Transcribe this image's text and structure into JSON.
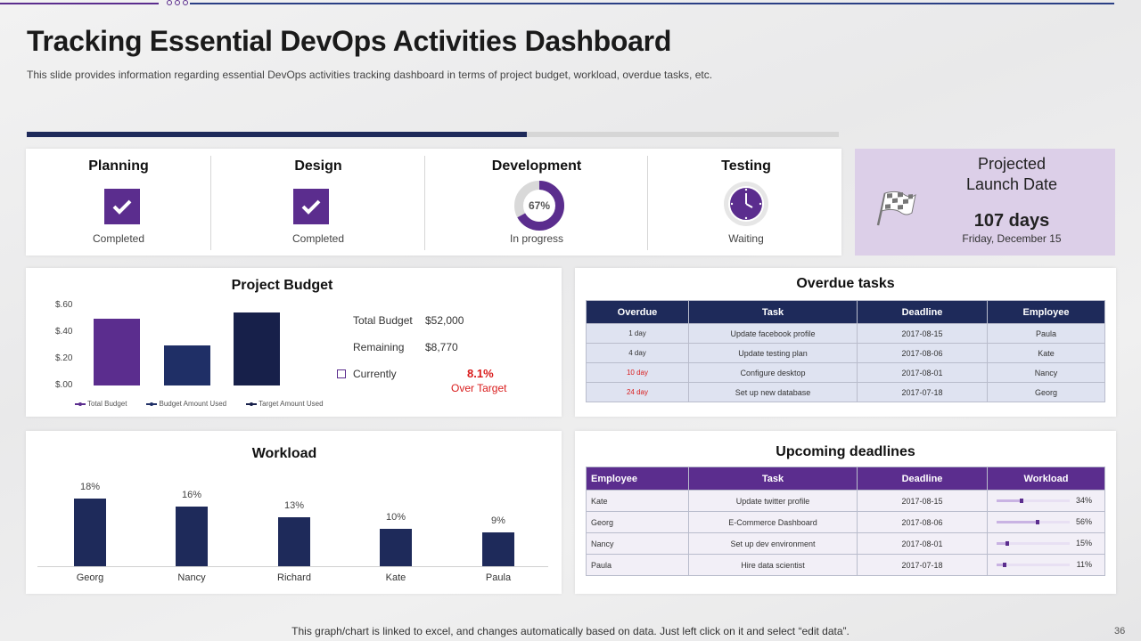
{
  "header": {
    "title": "Tracking Essential DevOps Activities Dashboard",
    "subtitle": "This slide provides information regarding essential DevOps activities tracking dashboard in terms of project budget, workload, overdue tasks, etc."
  },
  "overall_progress": 0.616,
  "stages": [
    {
      "name": "Planning",
      "status": "Completed",
      "icon": "checkbox-checked-icon"
    },
    {
      "name": "Design",
      "status": "Completed",
      "icon": "checkbox-checked-icon"
    },
    {
      "name": "Development",
      "status": "In progress",
      "percent": 67,
      "percent_label": "67%"
    },
    {
      "name": "Testing",
      "status": "Waiting",
      "icon": "clock-icon"
    }
  ],
  "launch": {
    "title_line1": "Projected",
    "title_line2": "Launch Date",
    "days": "107 days",
    "date": "Friday, December 15",
    "icon": "checkered-flag-icon"
  },
  "budget": {
    "title": "Project Budget",
    "total_label": "Total Budget",
    "total_value": "$52,000",
    "remaining_label": "Remaining",
    "remaining_value": "$8,770",
    "currently_label": "Currently",
    "over_pct": "8.1%",
    "over_label": "Over Target"
  },
  "overdue": {
    "title": "Overdue tasks",
    "columns": [
      "Overdue",
      "Task",
      "Deadline",
      "Employee"
    ],
    "rows": [
      {
        "overdue": "1 day",
        "task": "Update facebook profile",
        "deadline": "2017-08-15",
        "employee": "Paula",
        "alert": false
      },
      {
        "overdue": "4 day",
        "task": "Update testing plan",
        "deadline": "2017-08-06",
        "employee": "Kate",
        "alert": false
      },
      {
        "overdue": "10 day",
        "task": "Configure desktop",
        "deadline": "2017-08-01",
        "employee": "Nancy",
        "alert": true
      },
      {
        "overdue": "24 day",
        "task": "Set up new database",
        "deadline": "2017-07-18",
        "employee": "Georg",
        "alert": true
      }
    ]
  },
  "upcoming": {
    "title": "Upcoming deadlines",
    "columns": [
      "Employee",
      "Task",
      "Deadline",
      "Workload"
    ],
    "rows": [
      {
        "employee": "Kate",
        "task": "Update twitter profile",
        "deadline": "2017-08-15",
        "workload": 34,
        "workload_label": "34%"
      },
      {
        "employee": "Georg",
        "task": "E-Commerce Dashboard",
        "deadline": "2017-08-06",
        "workload": 56,
        "workload_label": "56%"
      },
      {
        "employee": "Nancy",
        "task": "Set up dev environment",
        "deadline": "2017-08-01",
        "workload": 15,
        "workload_label": "15%"
      },
      {
        "employee": "Paula",
        "task": "Hire data scientist",
        "deadline": "2017-07-18",
        "workload": 11,
        "workload_label": "11%"
      }
    ]
  },
  "workload_title": "Workload",
  "footer": {
    "note": "This graph/chart is linked to excel,  and changes automatically based on data. Just left click on it and select “edit data”.",
    "page": "36"
  },
  "colors": {
    "purple": "#5b2d8e",
    "navy": "#1e2a5a",
    "mid_navy": "#1f2f66",
    "red": "#d91c1c",
    "launch_bg": "#dccfe8"
  },
  "chart_data": [
    {
      "type": "bar",
      "title": "Project Budget",
      "categories": [
        "Total Budget",
        "Budget Amount Used",
        "Target Amount Used"
      ],
      "values": [
        0.5,
        0.3,
        0.55
      ],
      "yticks": [
        "$.60",
        "$.40",
        "$.20",
        "$.00"
      ],
      "ylim": [
        0,
        0.6
      ],
      "colors": [
        "#5b2d8e",
        "#1f2f66",
        "#17204a"
      ],
      "legend": [
        "Total Budget",
        "Budget Amount Used",
        "Target Amount Used"
      ],
      "legend_position": "bottom"
    },
    {
      "type": "bar",
      "title": "Workload",
      "categories": [
        "Georg",
        "Nancy",
        "Richard",
        "Kate",
        "Paula"
      ],
      "values": [
        18,
        16,
        13,
        10,
        9
      ],
      "labels": [
        "18%",
        "16%",
        "13%",
        "10%",
        "9%"
      ],
      "ylim": [
        0,
        20
      ]
    }
  ]
}
